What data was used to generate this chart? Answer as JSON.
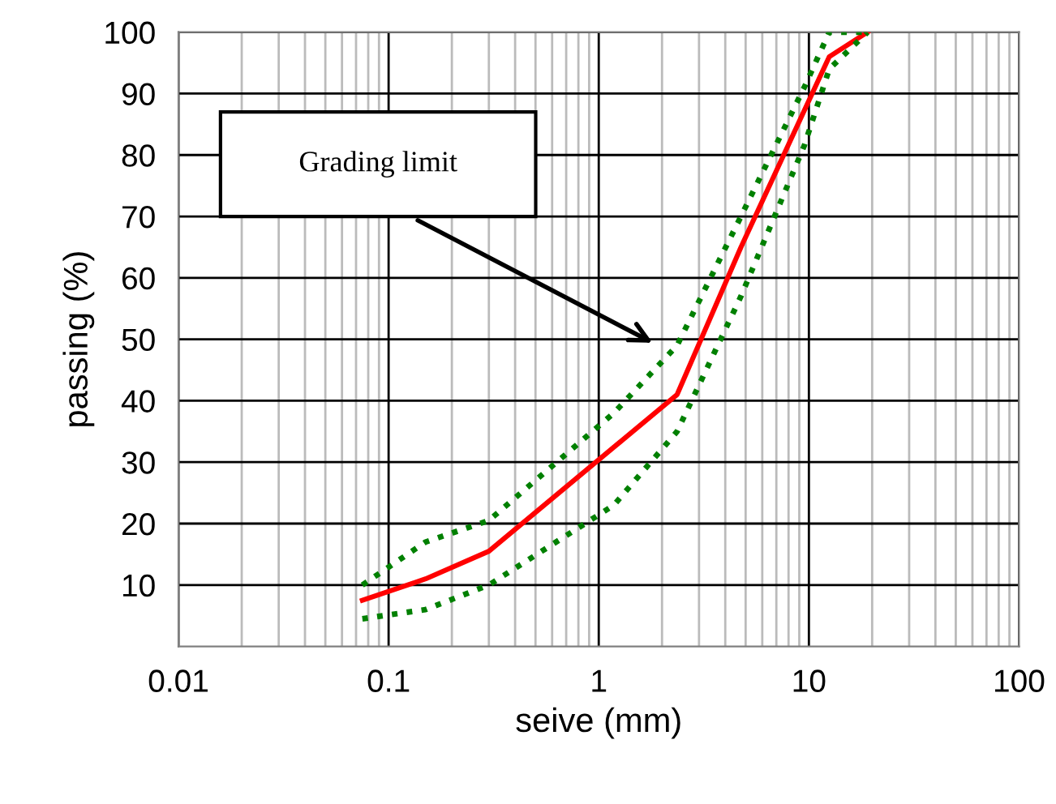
{
  "chart_data": {
    "type": "line",
    "xlabel": "seive (mm)",
    "ylabel": "passing (%)",
    "log": "x",
    "grid": true,
    "xlim": [
      0.01,
      100
    ],
    "xticks": [
      0.01,
      0.1,
      1,
      10,
      100
    ],
    "ylim": [
      0,
      100
    ],
    "yticks": [
      10,
      20,
      30,
      40,
      50,
      60,
      70,
      80,
      90,
      100
    ],
    "annotations": [
      "Grading limit"
    ],
    "series": [
      {
        "color": "#ff0000",
        "line_style": "solid",
        "x": [
          0.075,
          0.15,
          0.3,
          2.36,
          4.75,
          12.5,
          19
        ],
        "values": [
          7.5,
          11,
          15.5,
          41,
          65,
          96,
          100
        ]
      },
      {
        "color": "#008000",
        "line_style": "dotted",
        "x": [
          0.075,
          0.15,
          0.3,
          1.18,
          2.36,
          4.75,
          9.5,
          12.5,
          19
        ],
        "values": [
          10,
          17,
          20.5,
          38,
          49,
          70,
          91,
          100,
          100
        ]
      },
      {
        "color": "#008000",
        "line_style": "dotted",
        "x": [
          0.075,
          0.15,
          0.3,
          1.18,
          2.36,
          4.75,
          9.5,
          12.5,
          19
        ],
        "values": [
          4.5,
          6,
          10,
          23,
          35,
          57,
          81.5,
          94,
          100
        ]
      }
    ]
  }
}
